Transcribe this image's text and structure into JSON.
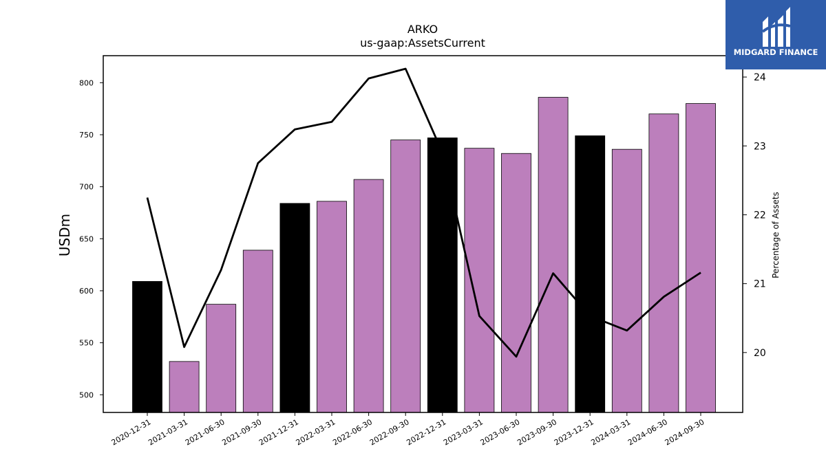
{
  "chart_data": {
    "type": "bar",
    "title": "ARKO",
    "subtitle": "us-gaap:AssetsCurrent",
    "ylabel": "USDm",
    "y2label": "Percentage of Assets",
    "categories": [
      "2020-12-31",
      "2021-03-31",
      "2021-06-30",
      "2021-09-30",
      "2021-12-31",
      "2022-03-31",
      "2022-06-30",
      "2022-09-30",
      "2022-12-31",
      "2023-03-31",
      "2023-06-30",
      "2023-09-30",
      "2023-12-31",
      "2024-03-31",
      "2024-06-30",
      "2024-09-30"
    ],
    "series": [
      {
        "type": "bar",
        "values": [
          609,
          532,
          587,
          639,
          684,
          686,
          707,
          745,
          747,
          737,
          732,
          786,
          749,
          736,
          770,
          780
        ],
        "colors": [
          "#000000",
          "#bc7fbc",
          "#bc7fbc",
          "#bc7fbc",
          "#000000",
          "#bc7fbc",
          "#bc7fbc",
          "#bc7fbc",
          "#000000",
          "#bc7fbc",
          "#bc7fbc",
          "#bc7fbc",
          "#000000",
          "#bc7fbc",
          "#bc7fbc",
          "#bc7fbc"
        ]
      },
      {
        "type": "line",
        "axis": "right",
        "values": [
          22.25,
          20.08,
          21.2,
          22.75,
          23.24,
          23.35,
          23.98,
          24.12,
          22.9,
          20.53,
          19.94,
          21.15,
          20.53,
          20.32,
          20.81,
          21.16
        ]
      }
    ],
    "ylim": [
      483,
      826
    ],
    "yticks": [
      500,
      550,
      600,
      650,
      700,
      750,
      800
    ],
    "y2lim": [
      19.13,
      24.31
    ],
    "y2ticks": [
      20,
      21,
      22,
      23,
      24
    ],
    "grid": false
  },
  "logo": {
    "text": "MIDGARD FINANCE",
    "color": "#2f5dab"
  }
}
